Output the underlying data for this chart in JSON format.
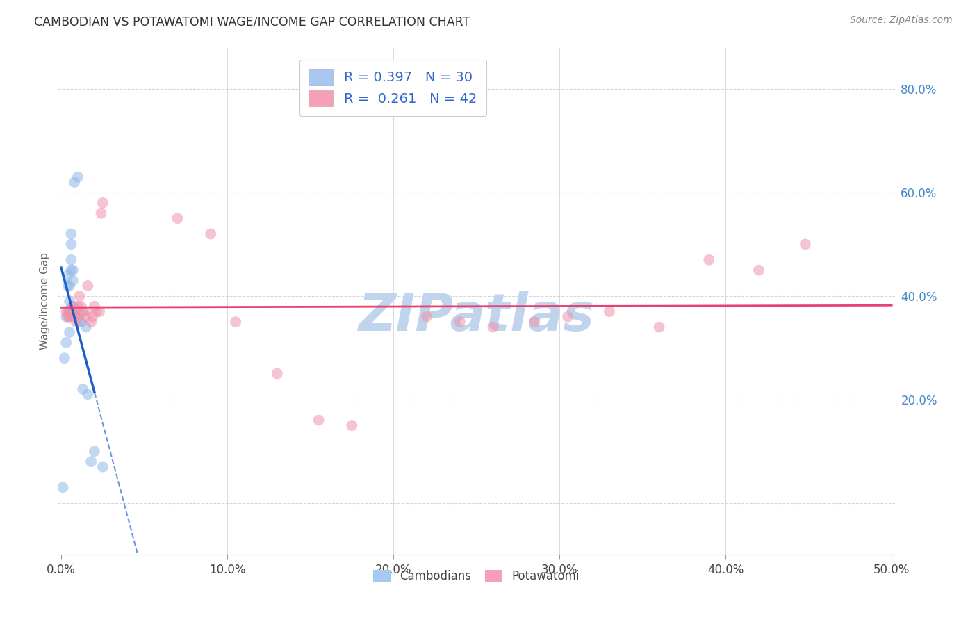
{
  "title": "CAMBODIAN VS POTAWATOMI WAGE/INCOME GAP CORRELATION CHART",
  "source": "Source: ZipAtlas.com",
  "ylabel": "Wage/Income Gap",
  "x_tick_labels": [
    "0.0%",
    "10.0%",
    "20.0%",
    "30.0%",
    "40.0%",
    "50.0%"
  ],
  "y_tick_labels": [
    "20.0%",
    "40.0%",
    "60.0%",
    "80.0%"
  ],
  "x_tick_vals": [
    0.0,
    0.1,
    0.2,
    0.3,
    0.4,
    0.5
  ],
  "y_tick_vals": [
    0.2,
    0.4,
    0.6,
    0.8
  ],
  "xlim": [
    -0.002,
    0.502
  ],
  "ylim": [
    -0.1,
    0.88
  ],
  "watermark": "ZIPatlas",
  "watermark_color": "#c0d4ee",
  "cambodian_x": [
    0.001,
    0.002,
    0.003,
    0.003,
    0.004,
    0.004,
    0.004,
    0.005,
    0.005,
    0.005,
    0.005,
    0.006,
    0.006,
    0.006,
    0.006,
    0.007,
    0.007,
    0.007,
    0.008,
    0.009,
    0.009,
    0.01,
    0.011,
    0.012,
    0.013,
    0.015,
    0.016,
    0.018,
    0.02,
    0.025
  ],
  "cambodian_y": [
    0.03,
    0.28,
    0.36,
    0.31,
    0.37,
    0.42,
    0.44,
    0.39,
    0.42,
    0.36,
    0.33,
    0.47,
    0.5,
    0.52,
    0.45,
    0.45,
    0.43,
    0.38,
    0.62,
    0.37,
    0.36,
    0.63,
    0.35,
    0.35,
    0.22,
    0.34,
    0.21,
    0.08,
    0.1,
    0.07
  ],
  "potawatomi_x": [
    0.003,
    0.004,
    0.005,
    0.005,
    0.006,
    0.006,
    0.007,
    0.007,
    0.008,
    0.008,
    0.009,
    0.01,
    0.01,
    0.011,
    0.012,
    0.013,
    0.014,
    0.015,
    0.016,
    0.018,
    0.019,
    0.02,
    0.021,
    0.023,
    0.024,
    0.025,
    0.07,
    0.09,
    0.105,
    0.13,
    0.155,
    0.175,
    0.22,
    0.24,
    0.26,
    0.285,
    0.305,
    0.33,
    0.36,
    0.39,
    0.42,
    0.448
  ],
  "potawatomi_y": [
    0.37,
    0.36,
    0.37,
    0.36,
    0.37,
    0.37,
    0.38,
    0.37,
    0.36,
    0.37,
    0.35,
    0.38,
    0.36,
    0.4,
    0.38,
    0.37,
    0.37,
    0.36,
    0.42,
    0.35,
    0.36,
    0.38,
    0.37,
    0.37,
    0.56,
    0.58,
    0.55,
    0.52,
    0.35,
    0.25,
    0.16,
    0.15,
    0.36,
    0.35,
    0.34,
    0.35,
    0.36,
    0.37,
    0.34,
    0.47,
    0.45,
    0.5
  ],
  "blue_dot_color": "#91b8e8",
  "pink_dot_color": "#f092aa",
  "blue_line_color": "#1a5fc8",
  "pink_line_color": "#e84070",
  "dot_size": 130,
  "dot_alpha": 0.55,
  "grid_color": "#cccccc",
  "background_color": "#ffffff",
  "fig_bg_color": "#ffffff",
  "legend_label_1": "R = 0.397   N = 30",
  "legend_label_2": "R =  0.261   N = 42",
  "legend_color_1": "#a8c8f0",
  "legend_color_2": "#f4a0b8",
  "blue_line_x_start": 0.0,
  "blue_line_x_solid_end": 0.02,
  "blue_line_x_dash_end": 0.095,
  "pink_line_x_start": 0.0,
  "pink_line_x_end": 0.5
}
